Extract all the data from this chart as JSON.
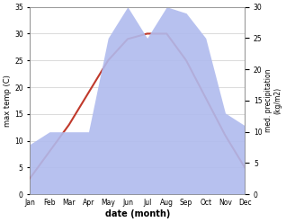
{
  "months": [
    "Jan",
    "Feb",
    "Mar",
    "Apr",
    "May",
    "Jun",
    "Jul",
    "Aug",
    "Sep",
    "Oct",
    "Nov",
    "Dec"
  ],
  "temp": [
    3,
    8,
    13,
    19,
    25,
    29,
    30,
    30,
    25,
    18,
    11,
    5
  ],
  "precip": [
    8,
    10,
    10,
    10,
    25,
    30,
    25,
    30,
    29,
    25,
    13,
    11
  ],
  "temp_color": "#c0392b",
  "precip_color": "#b0bbee",
  "temp_ylim": [
    0,
    35
  ],
  "precip_ylim": [
    0,
    30
  ],
  "ylabel_left": "max temp (C)",
  "ylabel_right": "med. precipitation\n(kg/m2)",
  "xlabel": "date (month)",
  "background_color": "#ffffff",
  "grid_color": "#cccccc"
}
